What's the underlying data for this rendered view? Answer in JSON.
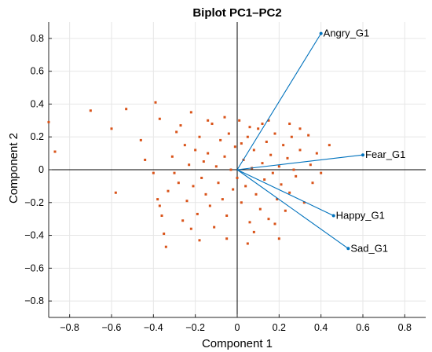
{
  "chart_data": {
    "type": "scatter",
    "title": "Biplot PC1–PC2",
    "xlabel": "Component 1",
    "ylabel": "Component 2",
    "xlim": [
      -0.9,
      0.9
    ],
    "ylim": [
      -0.9,
      0.9
    ],
    "xticks": [
      -0.8,
      -0.6,
      -0.4,
      -0.2,
      0,
      0.2,
      0.4,
      0.6,
      0.8
    ],
    "yticks": [
      -0.8,
      -0.6,
      -0.4,
      -0.2,
      0,
      0.2,
      0.4,
      0.6,
      0.8
    ],
    "grid": true,
    "colors": {
      "points": "#d95319",
      "vectors": "#0072bd",
      "axes": "#000000",
      "grid": "#e6e6e6"
    },
    "vectors": [
      {
        "name": "Angry_G1",
        "x": 0.4,
        "y": 0.83
      },
      {
        "name": "Fear_G1",
        "x": 0.6,
        "y": 0.09
      },
      {
        "name": "Happy_G1",
        "x": 0.46,
        "y": -0.28
      },
      {
        "name": "Sad_G1",
        "x": 0.53,
        "y": -0.48
      }
    ],
    "points": [
      [
        -0.9,
        0.29
      ],
      [
        -0.87,
        0.11
      ],
      [
        -0.7,
        0.36
      ],
      [
        -0.6,
        0.25
      ],
      [
        -0.58,
        -0.14
      ],
      [
        -0.53,
        0.37
      ],
      [
        -0.46,
        0.18
      ],
      [
        -0.44,
        0.06
      ],
      [
        -0.4,
        -0.02
      ],
      [
        -0.39,
        0.41
      ],
      [
        -0.37,
        0.31
      ],
      [
        -0.38,
        -0.18
      ],
      [
        -0.37,
        -0.22
      ],
      [
        -0.36,
        -0.28
      ],
      [
        -0.35,
        -0.39
      ],
      [
        -0.34,
        -0.47
      ],
      [
        -0.33,
        -0.13
      ],
      [
        -0.31,
        0.08
      ],
      [
        -0.3,
        -0.02
      ],
      [
        -0.29,
        0.23
      ],
      [
        -0.28,
        -0.08
      ],
      [
        -0.27,
        0.27
      ],
      [
        -0.26,
        -0.31
      ],
      [
        -0.25,
        0.15
      ],
      [
        -0.24,
        -0.19
      ],
      [
        -0.23,
        0.03
      ],
      [
        -0.22,
        0.35
      ],
      [
        -0.21,
        -0.1
      ],
      [
        -0.2,
        0.12
      ],
      [
        -0.19,
        -0.27
      ],
      [
        -0.18,
        0.2
      ],
      [
        -0.17,
        -0.05
      ],
      [
        -0.16,
        0.05
      ],
      [
        -0.15,
        -0.15
      ],
      [
        -0.14,
        0.1
      ],
      [
        -0.13,
        -0.22
      ],
      [
        -0.12,
        0.28
      ],
      [
        -0.11,
        -0.35
      ],
      [
        -0.1,
        0.02
      ],
      [
        -0.09,
        -0.08
      ],
      [
        -0.08,
        0.18
      ],
      [
        -0.07,
        -0.18
      ],
      [
        -0.06,
        0.08
      ],
      [
        -0.05,
        -0.28
      ],
      [
        -0.04,
        0.22
      ],
      [
        -0.03,
        0.0
      ],
      [
        -0.02,
        -0.12
      ],
      [
        -0.01,
        0.14
      ],
      [
        0.0,
        -0.05
      ],
      [
        0.01,
        0.3
      ],
      [
        0.02,
        -0.2
      ],
      [
        0.03,
        0.06
      ],
      [
        0.04,
        -0.1
      ],
      [
        0.05,
        0.2
      ],
      [
        0.06,
        -0.32
      ],
      [
        0.07,
        0.01
      ],
      [
        0.08,
        0.12
      ],
      [
        0.09,
        -0.15
      ],
      [
        0.1,
        0.25
      ],
      [
        0.11,
        -0.24
      ],
      [
        0.12,
        0.04
      ],
      [
        0.13,
        -0.06
      ],
      [
        0.14,
        0.17
      ],
      [
        0.15,
        -0.3
      ],
      [
        0.16,
        0.09
      ],
      [
        0.17,
        -0.02
      ],
      [
        0.18,
        0.22
      ],
      [
        0.19,
        -0.18
      ],
      [
        0.2,
        0.02
      ],
      [
        0.21,
        -0.09
      ],
      [
        0.22,
        0.15
      ],
      [
        0.23,
        -0.25
      ],
      [
        0.24,
        0.07
      ],
      [
        0.25,
        -0.14
      ],
      [
        0.26,
        0.2
      ],
      [
        0.27,
        0.0
      ],
      [
        0.28,
        -0.04
      ],
      [
        0.3,
        0.12
      ],
      [
        0.32,
        -0.2
      ],
      [
        0.34,
        0.21
      ],
      [
        0.35,
        0.03
      ],
      [
        0.36,
        -0.08
      ],
      [
        0.38,
        0.1
      ],
      [
        0.4,
        -0.02
      ],
      [
        0.44,
        0.15
      ],
      [
        0.08,
        -0.38
      ],
      [
        0.05,
        -0.45
      ],
      [
        -0.05,
        -0.42
      ],
      [
        -0.18,
        -0.43
      ],
      [
        0.2,
        -0.42
      ],
      [
        0.12,
        0.28
      ],
      [
        -0.14,
        0.3
      ],
      [
        0.3,
        0.25
      ],
      [
        0.18,
        -0.33
      ],
      [
        -0.22,
        -0.36
      ],
      [
        0.02,
        0.16
      ],
      [
        0.06,
        0.26
      ],
      [
        -0.06,
        0.32
      ],
      [
        0.15,
        0.3
      ],
      [
        0.25,
        0.28
      ]
    ]
  }
}
